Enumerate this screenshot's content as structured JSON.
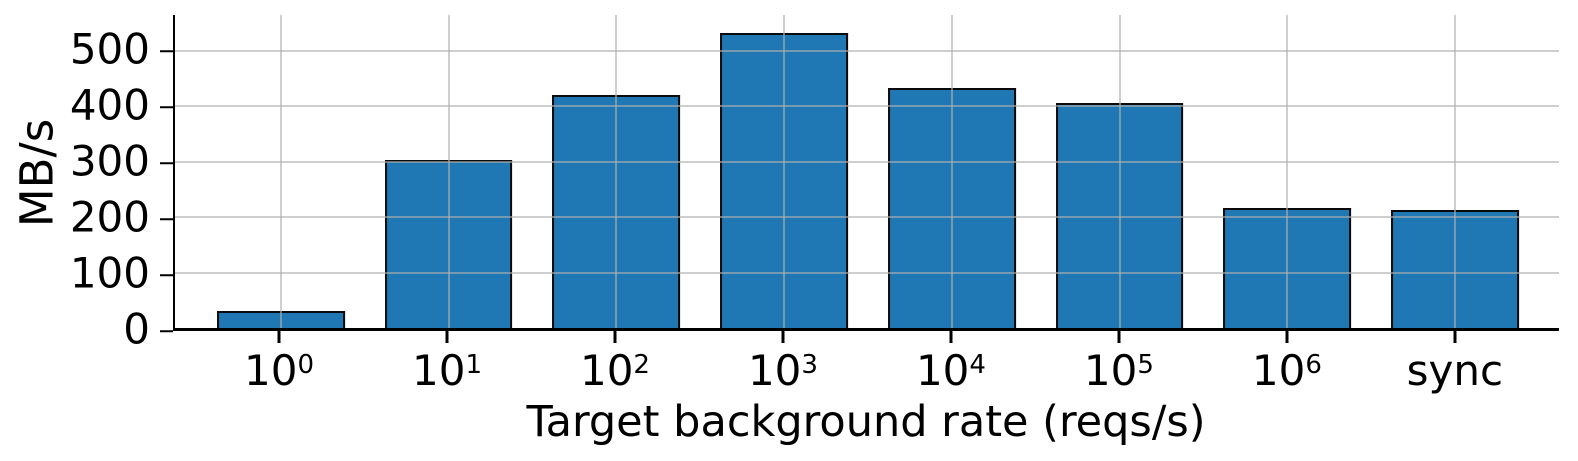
{
  "chart_data": {
    "type": "bar",
    "title": "",
    "xlabel": "Target background rate (reqs/s)",
    "ylabel": "MB/s",
    "categories": [
      {
        "base": "10",
        "sup": "0"
      },
      {
        "base": "10",
        "sup": "1"
      },
      {
        "base": "10",
        "sup": "2"
      },
      {
        "base": "10",
        "sup": "3"
      },
      {
        "base": "10",
        "sup": "4"
      },
      {
        "base": "10",
        "sup": "5"
      },
      {
        "base": "10",
        "sup": "6"
      },
      {
        "base": "sync",
        "sup": ""
      }
    ],
    "values": [
      30,
      304,
      420,
      533,
      433,
      406,
      217,
      213
    ],
    "yticks": [
      0,
      100,
      200,
      300,
      400,
      500
    ],
    "ylim": [
      0,
      565
    ],
    "grid": "on, drawn over bars, horizontal and vertical at ticks",
    "legend_position": "none",
    "bar_color": "#1f77b4",
    "bar_edge_color": "#0a0a0a",
    "grid_color": "#b0b0b0",
    "axis_color": "#000000"
  }
}
